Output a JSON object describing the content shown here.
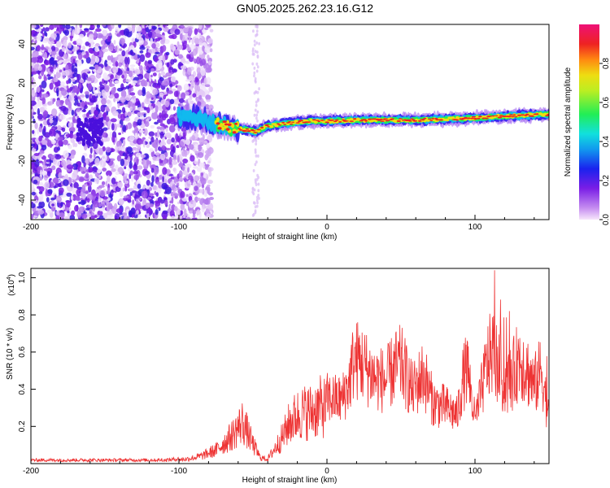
{
  "title": "GN05.2025.262.23.16.G12",
  "chart_data": [
    {
      "type": "heatmap",
      "title": "GN05.2025.262.23.16.G12",
      "xlabel": "Height of straight line (km)",
      "ylabel": "Frequency (Hz)",
      "xlim": [
        -200,
        150
      ],
      "ylim": [
        -50,
        50
      ],
      "xticks": [
        -200,
        -100,
        0,
        100
      ],
      "xtick_labels": [
        "-200",
        "-100",
        "0",
        "100"
      ],
      "yticks": [
        -40,
        -20,
        0,
        20,
        40
      ],
      "ytick_labels": [
        "-40",
        "-20",
        "0",
        "20",
        "40"
      ],
      "ridge_frequency_track": {
        "height_km": [
          -100,
          -85,
          -75,
          -65,
          -55,
          -48,
          -40,
          -30,
          -20,
          -10,
          0,
          20,
          40,
          60,
          80,
          100,
          120,
          150
        ],
        "freq_hz": [
          3,
          2,
          -1,
          -3,
          -4,
          -5,
          -2,
          -1,
          0,
          0.5,
          0.5,
          1,
          1,
          1,
          1.5,
          2,
          3,
          4
        ]
      },
      "colorbar": {
        "label": "Normalized spectral amplitude",
        "range": [
          0,
          1
        ],
        "ticks": [
          0.0,
          0.2,
          0.4,
          0.6,
          0.8
        ],
        "tick_labels": [
          "0.0",
          "0.2",
          "0.4",
          "0.6",
          "0.8"
        ]
      }
    },
    {
      "type": "line",
      "xlabel": "Height of straight line (km)",
      "ylabel": "SNR (10 * v/v)",
      "scale_label": "(x10",
      "scale_exponent": "4",
      "scale_close": ")",
      "xlim": [
        -200,
        150
      ],
      "ylim": [
        0,
        1.05
      ],
      "xticks": [
        -200,
        -100,
        0,
        100
      ],
      "xtick_labels": [
        "-200",
        "-100",
        "0",
        "100"
      ],
      "yticks": [
        0.2,
        0.4,
        0.6,
        0.8,
        1.0
      ],
      "ytick_labels": [
        "0.2",
        "0.4",
        "0.6",
        "0.8",
        "1.0"
      ],
      "series": [
        {
          "name": "SNR",
          "color": "#ee3333",
          "envelope_x": [
            -200,
            -150,
            -110,
            -95,
            -85,
            -75,
            -65,
            -57,
            -50,
            -45,
            -40,
            -30,
            -25,
            -18,
            -10,
            -5,
            0,
            10,
            15,
            18,
            22,
            27,
            32,
            40,
            45,
            50,
            58,
            65,
            72,
            80,
            88,
            92,
            95,
            100,
            104,
            108,
            112,
            116,
            120,
            125,
            130,
            135,
            140,
            145,
            150
          ],
          "envelope_y": [
            0.02,
            0.02,
            0.02,
            0.03,
            0.05,
            0.09,
            0.18,
            0.28,
            0.13,
            0.04,
            0.03,
            0.18,
            0.28,
            0.34,
            0.35,
            0.38,
            0.38,
            0.37,
            0.47,
            0.6,
            0.6,
            0.55,
            0.5,
            0.48,
            0.55,
            0.58,
            0.42,
            0.52,
            0.35,
            0.33,
            0.28,
            0.5,
            0.55,
            0.25,
            0.4,
            0.58,
            0.66,
            0.55,
            0.45,
            0.5,
            0.62,
            0.55,
            0.45,
            0.55,
            0.25
          ]
        }
      ]
    }
  ],
  "colors": {
    "axis": "#000000",
    "line": "#ee3333",
    "ridge_core": "#dd1111"
  }
}
